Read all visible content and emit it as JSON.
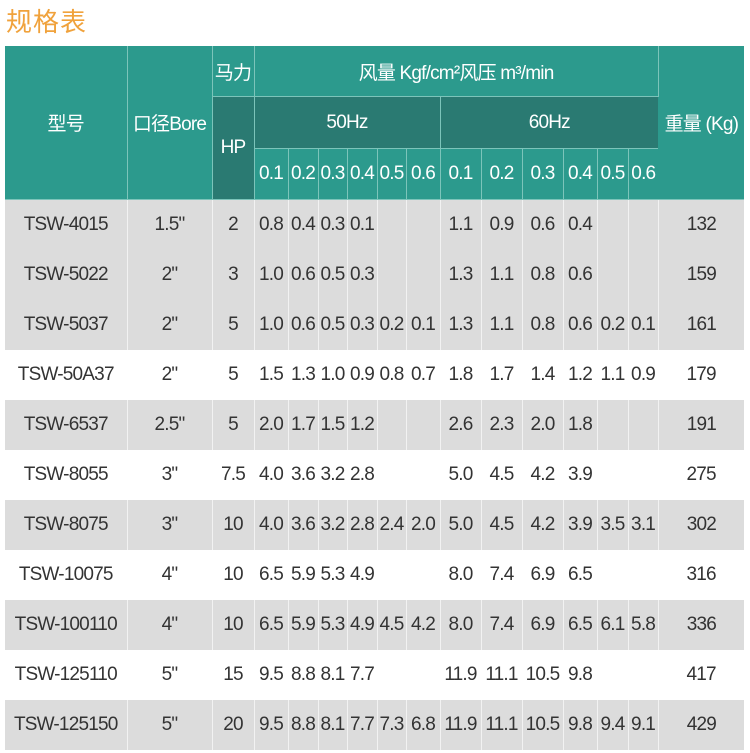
{
  "title": "规格表",
  "colors": {
    "title": "#f0a23c",
    "header": "#2c9a8d",
    "header_dark": "#2a7a72",
    "row_gray": "#dcdcdc"
  },
  "header": {
    "model": "型号",
    "bore": "口径Bore",
    "power": "马力",
    "hp": "HP",
    "flow": "风量 Kgf/cm²风压 m³/min",
    "hz50": "50Hz",
    "hz60": "60Hz",
    "weight": "重量 (Kg)",
    "pressures": [
      "0.1",
      "0.2",
      "0.3",
      "0.4",
      "0.5",
      "0.6",
      "0.1",
      "0.2",
      "0.3",
      "0.4",
      "0.5",
      "0.6"
    ]
  },
  "rows": [
    {
      "model": "TSW-4015",
      "bore": "1.5\"",
      "hp": "2",
      "v50": [
        "0.8",
        "0.4",
        "0.3",
        "0.1",
        "",
        ""
      ],
      "v60": [
        "1.1",
        "0.9",
        "0.6",
        "0.4",
        "",
        ""
      ],
      "weight": "132",
      "shade": "gray"
    },
    {
      "model": "TSW-5022",
      "bore": "2\"",
      "hp": "3",
      "v50": [
        "1.0",
        "0.6",
        "0.5",
        "0.3",
        "",
        ""
      ],
      "v60": [
        "1.3",
        "1.1",
        "0.8",
        "0.6",
        "",
        ""
      ],
      "weight": "159",
      "shade": "gray"
    },
    {
      "model": "TSW-5037",
      "bore": "2\"",
      "hp": "5",
      "v50": [
        "1.0",
        "0.6",
        "0.5",
        "0.3",
        "0.2",
        "0.1"
      ],
      "v60": [
        "1.3",
        "1.1",
        "0.8",
        "0.6",
        "0.2",
        "0.1"
      ],
      "weight": "161",
      "shade": "gray"
    },
    {
      "model": "TSW-50A37",
      "bore": "2\"",
      "hp": "5",
      "v50": [
        "1.5",
        "1.3",
        "1.0",
        "0.9",
        "0.8",
        "0.7"
      ],
      "v60": [
        "1.8",
        "1.7",
        "1.4",
        "1.2",
        "1.1",
        "0.9"
      ],
      "weight": "179",
      "shade": "white"
    },
    {
      "model": "TSW-6537",
      "bore": "2.5\"",
      "hp": "5",
      "v50": [
        "2.0",
        "1.7",
        "1.5",
        "1.2",
        "",
        ""
      ],
      "v60": [
        "2.6",
        "2.3",
        "2.0",
        "1.8",
        "",
        ""
      ],
      "weight": "191",
      "shade": "gray"
    },
    {
      "model": "TSW-8055",
      "bore": "3\"",
      "hp": "7.5",
      "v50": [
        "4.0",
        "3.6",
        "3.2",
        "2.8",
        "",
        ""
      ],
      "v60": [
        "5.0",
        "4.5",
        "4.2",
        "3.9",
        "",
        ""
      ],
      "weight": "275",
      "shade": "white"
    },
    {
      "model": "TSW-8075",
      "bore": "3\"",
      "hp": "10",
      "v50": [
        "4.0",
        "3.6",
        "3.2",
        "2.8",
        "2.4",
        "2.0"
      ],
      "v60": [
        "5.0",
        "4.5",
        "4.2",
        "3.9",
        "3.5",
        "3.1"
      ],
      "weight": "302",
      "shade": "gray"
    },
    {
      "model": "TSW-10075",
      "bore": "4\"",
      "hp": "10",
      "v50": [
        "6.5",
        "5.9",
        "5.3",
        "4.9",
        "",
        ""
      ],
      "v60": [
        "8.0",
        "7.4",
        "6.9",
        "6.5",
        "",
        ""
      ],
      "weight": "316",
      "shade": "white"
    },
    {
      "model": "TSW-100110",
      "bore": "4\"",
      "hp": "10",
      "v50": [
        "6.5",
        "5.9",
        "5.3",
        "4.9",
        "4.5",
        "4.2"
      ],
      "v60": [
        "8.0",
        "7.4",
        "6.9",
        "6.5",
        "6.1",
        "5.8"
      ],
      "weight": "336",
      "shade": "gray"
    },
    {
      "model": "TSW-125110",
      "bore": "5\"",
      "hp": "15",
      "v50": [
        "9.5",
        "8.8",
        "8.1",
        "7.7",
        "",
        ""
      ],
      "v60": [
        "11.9",
        "11.1",
        "10.5",
        "9.8",
        "",
        ""
      ],
      "weight": "417",
      "shade": "white"
    },
    {
      "model": "TSW-125150",
      "bore": "5\"",
      "hp": "20",
      "v50": [
        "9.5",
        "8.8",
        "8.1",
        "7.7",
        "7.3",
        "6.8"
      ],
      "v60": [
        "11.9",
        "11.1",
        "10.5",
        "9.8",
        "9.4",
        "9.1"
      ],
      "weight": "429",
      "shade": "gray"
    }
  ]
}
